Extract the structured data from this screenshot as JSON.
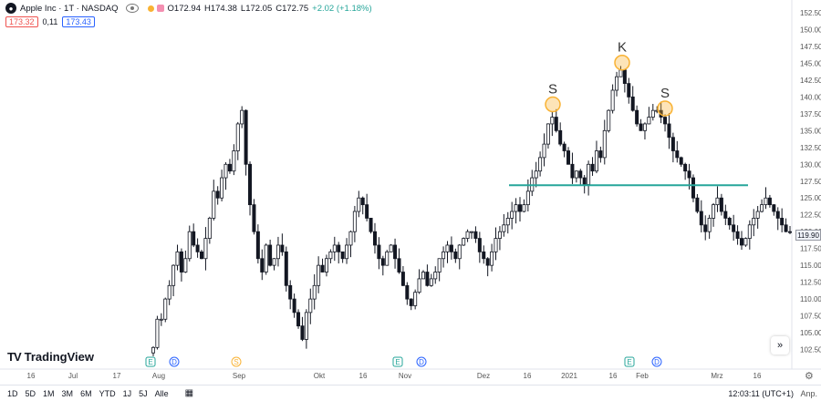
{
  "header": {
    "title": "Apple Inc · 1T · NASDAQ",
    "logo_char": "●",
    "ohlc": {
      "open": "O172.94",
      "high": "H174.38",
      "low": "L172.05",
      "close": "C172.75",
      "change": "+2.02 (+1.18%)"
    },
    "bid": "173.32",
    "spread": "0,11",
    "ask": "173.43"
  },
  "chart_data": {
    "type": "candlestick",
    "symbol": "Apple Inc · 1T · NASDAQ",
    "ylim": [
      100,
      152.5
    ],
    "yticks": [
      "152.50",
      "150.00",
      "147.50",
      "145.00",
      "142.50",
      "140.00",
      "137.50",
      "135.00",
      "132.50",
      "130.00",
      "127.50",
      "125.00",
      "122.50",
      "120.00",
      "117.50",
      "115.00",
      "112.50",
      "110.00",
      "107.50",
      "105.00",
      "102.50"
    ],
    "xticks": [
      "16",
      "Jul",
      "17",
      "Aug",
      "Sep",
      "Okt",
      "16",
      "Nov",
      "Dez",
      "16",
      "2021",
      "16",
      "Feb",
      "Mrz",
      "16"
    ],
    "current_price": "119.90",
    "neckline": 126.9,
    "pattern": [
      {
        "label": "S",
        "price": 138.9
      },
      {
        "label": "K",
        "price": 145.1
      },
      {
        "label": "S",
        "price": 138.3
      }
    ],
    "events": [
      {
        "type": "E"
      },
      {
        "type": "D"
      },
      {
        "type": "S"
      },
      {
        "type": "E"
      },
      {
        "type": "D"
      },
      {
        "type": "E"
      },
      {
        "type": "D"
      }
    ],
    "series": {
      "segments": [
        {
          "type": "ohlc",
          "points": [
            [
              102,
              103,
              101.5,
              102.8
            ],
            [
              102.8,
              107.5,
              102.5,
              107
            ]
          ]
        },
        {
          "type": "path",
          "points": [
            107,
            110,
            112,
            115,
            117,
            114,
            116,
            120,
            118,
            117,
            116,
            119,
            122,
            126,
            125,
            128,
            130,
            129,
            132,
            136,
            138,
            130,
            124,
            120,
            116,
            114,
            118,
            115,
            116,
            118,
            117,
            112,
            110,
            108,
            106,
            104,
            108,
            110,
            112,
            115,
            114,
            116,
            117,
            118,
            117,
            116,
            118,
            120,
            123,
            125,
            124,
            122,
            120,
            118,
            116,
            115,
            117,
            118,
            116,
            114,
            112,
            110,
            109,
            111,
            113,
            114,
            112,
            113,
            114,
            116,
            117,
            118,
            117,
            116,
            118,
            119,
            120,
            120,
            119,
            117,
            116,
            115,
            117,
            119,
            120,
            121,
            122,
            123,
            124,
            123,
            124,
            126,
            128,
            129,
            131,
            133,
            136,
            137,
            135,
            133,
            132,
            130,
            128,
            129,
            128,
            127,
            130,
            129,
            132,
            131,
            135,
            138,
            141,
            143,
            144,
            142,
            140,
            138,
            136,
            135,
            136,
            137,
            138,
            138,
            137,
            136,
            134,
            132,
            131,
            130,
            129,
            128,
            125,
            123,
            121,
            120,
            122,
            124,
            125,
            123,
            122,
            121,
            120,
            119,
            118,
            119,
            121,
            122,
            123,
            124,
            125,
            124,
            123,
            122,
            121,
            120,
            119.9
          ]
        }
      ]
    }
  },
  "ui": {
    "scroll_label": "»",
    "gear_char": "⚙",
    "calendar_char": "▦",
    "logo_mark": "TV",
    "logo_text": "TradingView"
  },
  "bottom_bar": {
    "ranges": [
      "1D",
      "5D",
      "1M",
      "3M",
      "6M",
      "YTD",
      "1J",
      "5J",
      "Alle"
    ],
    "time": "12:03:11 (UTC+1)",
    "adj": "Anp."
  },
  "colors": {
    "up": "#131722",
    "down": "#131722",
    "neckline": "#26a69a",
    "circle": "#f9b233",
    "ev_e": "#26a69a",
    "ev_d": "#2962ff",
    "ev_s": "#f9b233"
  }
}
